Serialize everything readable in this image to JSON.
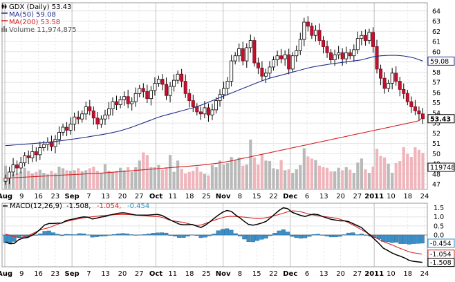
{
  "chart_data": [
    {
      "type": "candlestick",
      "title": "GDX (Daily) 53.43",
      "legend": [
        {
          "label": "GDX (Daily) 53.43",
          "color": "#000000",
          "icon": "candlestick-icon"
        },
        {
          "label": "MA(50) 59.08",
          "color": "#1f2d8a"
        },
        {
          "label": "MA(200) 53.58",
          "color": "#d62020"
        },
        {
          "label": "Volume 11,974,875",
          "color": "#888888",
          "icon": "volume-bars-icon"
        }
      ],
      "x_ticks": [
        {
          "label": "Aug",
          "month": true
        },
        {
          "label": "9"
        },
        {
          "label": "16"
        },
        {
          "label": "23"
        },
        {
          "label": "Sep",
          "month": true
        },
        {
          "label": "7"
        },
        {
          "label": "13"
        },
        {
          "label": "20"
        },
        {
          "label": "27"
        },
        {
          "label": "Oct",
          "month": true
        },
        {
          "label": "11"
        },
        {
          "label": "18"
        },
        {
          "label": "25"
        },
        {
          "label": "Nov",
          "month": true
        },
        {
          "label": "8"
        },
        {
          "label": "15"
        },
        {
          "label": "22"
        },
        {
          "label": "Dec",
          "month": true
        },
        {
          "label": "6"
        },
        {
          "label": "13"
        },
        {
          "label": "20"
        },
        {
          "label": "27"
        },
        {
          "label": "2011",
          "month": true
        },
        {
          "label": "10"
        },
        {
          "label": "18"
        },
        {
          "label": "24"
        }
      ],
      "y_ticks": [
        "47",
        "48",
        "49",
        "50",
        "51",
        "52",
        "53",
        "54",
        "55",
        "56",
        "57",
        "58",
        "59",
        "60",
        "61",
        "62",
        "63",
        "64"
      ],
      "ylim": [
        46.5,
        64.8
      ],
      "last_value_tag": "53.43",
      "ma50_tag": "59.08",
      "ma200_tag": "53.58",
      "volume_tag": "11974875",
      "closes": [
        47.6,
        48.2,
        48.9,
        48.6,
        49.1,
        49.8,
        49.6,
        50.2,
        49.9,
        50.6,
        50.9,
        51.1,
        50.7,
        51.4,
        52.1,
        52.6,
        52.3,
        52.9,
        53.6,
        53.4,
        53.9,
        54.6,
        54.2,
        53.5,
        52.9,
        53.4,
        53.8,
        54.4,
        55.1,
        54.8,
        55.3,
        55.6,
        54.9,
        55.1,
        55.9,
        56.4,
        56.1,
        55.4,
        56.2,
        56.9,
        57.3,
        56.8,
        55.7,
        56.6,
        57.2,
        57.8,
        57.1,
        55.9,
        55.2,
        54.6,
        54.1,
        53.9,
        54.5,
        53.8,
        54.3,
        55.2,
        55.8,
        56.4,
        57.1,
        59.1,
        59.6,
        60.3,
        59.1,
        60.4,
        61.1,
        58.9,
        58.4,
        57.6,
        57.9,
        58.5,
        59.2,
        59.6,
        59.3,
        59.7,
        58.3,
        59.6,
        60.1,
        61.2,
        62.9,
        62.5,
        61.6,
        62.1,
        61.1,
        60.5,
        59.9,
        59.2,
        59.7,
        59.9,
        59.3,
        59.9,
        59.6,
        60.2,
        61.3,
        61.6,
        61.1,
        61.9,
        60.5,
        58.3,
        57.4,
        56.4,
        56.9,
        57.9,
        57.1,
        56.3,
        55.9,
        55.1,
        54.6,
        54.2,
        53.9,
        53.43
      ],
      "ma50": [
        50.8,
        50.82,
        50.85,
        50.87,
        50.9,
        50.93,
        50.96,
        50.99,
        51.02,
        51.05,
        51.09,
        51.12,
        51.16,
        51.2,
        51.25,
        51.3,
        51.35,
        51.4,
        51.45,
        51.5,
        51.56,
        51.62,
        51.68,
        51.74,
        51.8,
        51.86,
        51.93,
        52.0,
        52.08,
        52.16,
        52.25,
        52.36,
        52.48,
        52.6,
        52.74,
        52.88,
        53.02,
        53.16,
        53.3,
        53.45,
        53.58,
        53.7,
        53.8,
        53.9,
        54.0,
        54.1,
        54.2,
        54.3,
        54.4,
        54.5,
        54.62,
        54.75,
        54.9,
        55.05,
        55.2,
        55.35,
        55.5,
        55.65,
        55.8,
        55.95,
        56.1,
        56.25,
        56.4,
        56.55,
        56.7,
        56.85,
        57.0,
        57.15,
        57.28,
        57.4,
        57.5,
        57.6,
        57.7,
        57.8,
        57.9,
        58.0,
        58.1,
        58.2,
        58.3,
        58.4,
        58.48,
        58.56,
        58.62,
        58.68,
        58.74,
        58.8,
        58.85,
        58.9,
        58.95,
        59.0,
        59.05,
        59.1,
        59.15,
        59.2,
        59.3,
        59.4,
        59.5,
        59.55,
        59.6,
        59.62,
        59.64,
        59.65,
        59.64,
        59.62,
        59.58,
        59.52,
        59.45,
        59.35,
        59.22,
        59.08
      ],
      "ma200": [
        47.6,
        47.62,
        47.64,
        47.66,
        47.68,
        47.7,
        47.72,
        47.74,
        47.76,
        47.78,
        47.8,
        47.82,
        47.84,
        47.86,
        47.88,
        47.9,
        47.92,
        47.94,
        47.96,
        47.98,
        48.0,
        48.02,
        48.04,
        48.06,
        48.08,
        48.1,
        48.12,
        48.15,
        48.18,
        48.21,
        48.24,
        48.27,
        48.3,
        48.33,
        48.36,
        48.39,
        48.42,
        48.45,
        48.48,
        48.51,
        48.54,
        48.57,
        48.6,
        48.63,
        48.66,
        48.69,
        48.72,
        48.75,
        48.78,
        48.81,
        48.84,
        48.88,
        48.92,
        48.96,
        49.0,
        49.05,
        49.1,
        49.16,
        49.23,
        49.3,
        49.38,
        49.46,
        49.54,
        49.62,
        49.7,
        49.78,
        49.86,
        49.94,
        50.02,
        50.1,
        50.18,
        50.26,
        50.34,
        50.42,
        50.5,
        50.58,
        50.66,
        50.74,
        50.82,
        50.9,
        50.98,
        51.06,
        51.14,
        51.22,
        51.3,
        51.38,
        51.46,
        51.54,
        51.62,
        51.7,
        51.78,
        51.86,
        51.94,
        52.02,
        52.1,
        52.18,
        52.26,
        52.34,
        52.42,
        52.5,
        52.58,
        52.66,
        52.74,
        52.82,
        52.9,
        52.98,
        53.06,
        53.14,
        53.24,
        53.58
      ],
      "volume": [
        0.45,
        0.33,
        0.28,
        0.3,
        0.33,
        0.41,
        0.35,
        0.3,
        0.33,
        0.37,
        0.31,
        0.28,
        0.35,
        0.3,
        0.43,
        0.4,
        0.36,
        0.35,
        0.36,
        0.4,
        0.34,
        0.36,
        0.4,
        0.43,
        0.35,
        0.31,
        0.48,
        0.35,
        0.32,
        0.35,
        0.41,
        0.36,
        0.42,
        0.33,
        0.42,
        0.55,
        0.71,
        0.66,
        0.42,
        0.42,
        0.46,
        0.37,
        0.42,
        0.66,
        0.33,
        0.55,
        0.39,
        0.3,
        0.33,
        0.35,
        0.43,
        0.33,
        0.29,
        0.26,
        0.46,
        0.42,
        0.55,
        0.47,
        0.5,
        0.62,
        0.56,
        0.61,
        0.45,
        0.47,
        0.96,
        0.61,
        0.47,
        0.67,
        0.55,
        0.54,
        0.4,
        0.38,
        0.56,
        0.36,
        0.38,
        0.31,
        0.38,
        0.46,
        0.79,
        0.63,
        0.59,
        0.56,
        0.45,
        0.42,
        0.41,
        0.34,
        0.34,
        0.41,
        0.36,
        0.42,
        0.37,
        0.31,
        0.51,
        0.59,
        0.38,
        0.31,
        0.43,
        0.78,
        0.64,
        0.61,
        0.49,
        0.31,
        0.5,
        0.54,
        0.81,
        0.68,
        0.62,
        0.81,
        0.76,
        0.7
      ]
    },
    {
      "type": "line",
      "title": "MACD(12,26,9) -1.508, -1.054, -0.454",
      "legend_label": "MACD(12,26,9)",
      "legend_values": [
        {
          "text": "-1.508",
          "color": "#000000"
        },
        {
          "text": "-1.054",
          "color": "#d62020"
        },
        {
          "text": "-0.454",
          "color": "#2a8fbf"
        }
      ],
      "y_ticks": [
        "1.5",
        "1.0",
        "0.5",
        "0.0"
      ],
      "ylim": [
        -1.75,
        1.75
      ],
      "tags": [
        {
          "value": -0.454,
          "text": "-0.454",
          "color": "#2a8fbf"
        },
        {
          "value": -1.054,
          "text": "-1.054",
          "color": "#d62020"
        },
        {
          "value": -1.508,
          "text": "-1.508",
          "color": "#000000"
        }
      ],
      "macd": [
        -0.38,
        -0.48,
        -0.46,
        -0.27,
        -0.17,
        -0.14,
        -0.03,
        0.11,
        0.32,
        0.55,
        0.63,
        0.63,
        0.65,
        0.66,
        0.8,
        0.85,
        0.9,
        0.96,
        1.0,
        0.98,
        0.88,
        0.93,
        0.99,
        1.02,
        1.1,
        1.15,
        1.2,
        1.22,
        1.2,
        1.14,
        1.1,
        1.09,
        1.09,
        1.1,
        1.12,
        1.13,
        1.08,
        0.96,
        0.82,
        0.71,
        0.6,
        0.56,
        0.57,
        0.58,
        0.49,
        0.41,
        0.54,
        0.71,
        0.91,
        1.09,
        1.25,
        1.35,
        1.3,
        1.1,
        0.94,
        0.75,
        0.58,
        0.54,
        0.59,
        0.66,
        0.75,
        0.94,
        1.15,
        1.35,
        1.5,
        1.45,
        1.25,
        1.16,
        1.08,
        1.02,
        1.1,
        1.15,
        1.12,
        1.02,
        0.94,
        0.86,
        0.82,
        0.78,
        0.78,
        0.74,
        0.63,
        0.52,
        0.41,
        0.19,
        -0.02,
        -0.24,
        -0.46,
        -0.72,
        -0.85,
        -0.99,
        -1.09,
        -1.17,
        -1.27,
        -1.4,
        -1.45,
        -1.48,
        -1.508
      ],
      "signal": [
        0.05,
        -0.02,
        -0.1,
        -0.15,
        -0.1,
        0.0,
        0.12,
        0.25,
        0.34,
        0.4,
        0.5,
        0.6,
        0.7,
        0.76,
        0.82,
        0.88,
        0.93,
        0.97,
        1.0,
        1.03,
        1.06,
        1.08,
        1.1,
        1.12,
        1.13,
        1.13,
        1.12,
        1.1,
        1.08,
        1.06,
        1.04,
        1.02,
        1.01,
        0.95,
        0.85,
        0.78,
        0.74,
        0.7,
        0.64,
        0.57,
        0.52,
        0.56,
        0.66,
        0.76,
        0.85,
        0.93,
        1.0,
        1.03,
        1.02,
        1.0,
        0.98,
        0.95,
        0.92,
        0.9,
        0.93,
        0.98,
        1.05,
        1.12,
        1.2,
        1.28,
        1.33,
        1.31,
        1.26,
        1.18,
        1.12,
        1.07,
        1.03,
        1.0,
        0.97,
        0.93,
        0.86,
        0.76,
        0.63,
        0.5,
        0.35,
        0.2,
        0.05,
        -0.1,
        -0.24,
        -0.36,
        -0.47,
        -0.57,
        -0.69,
        -0.79,
        -0.89,
        -0.97,
        -1.01,
        -1.054
      ]
    }
  ]
}
